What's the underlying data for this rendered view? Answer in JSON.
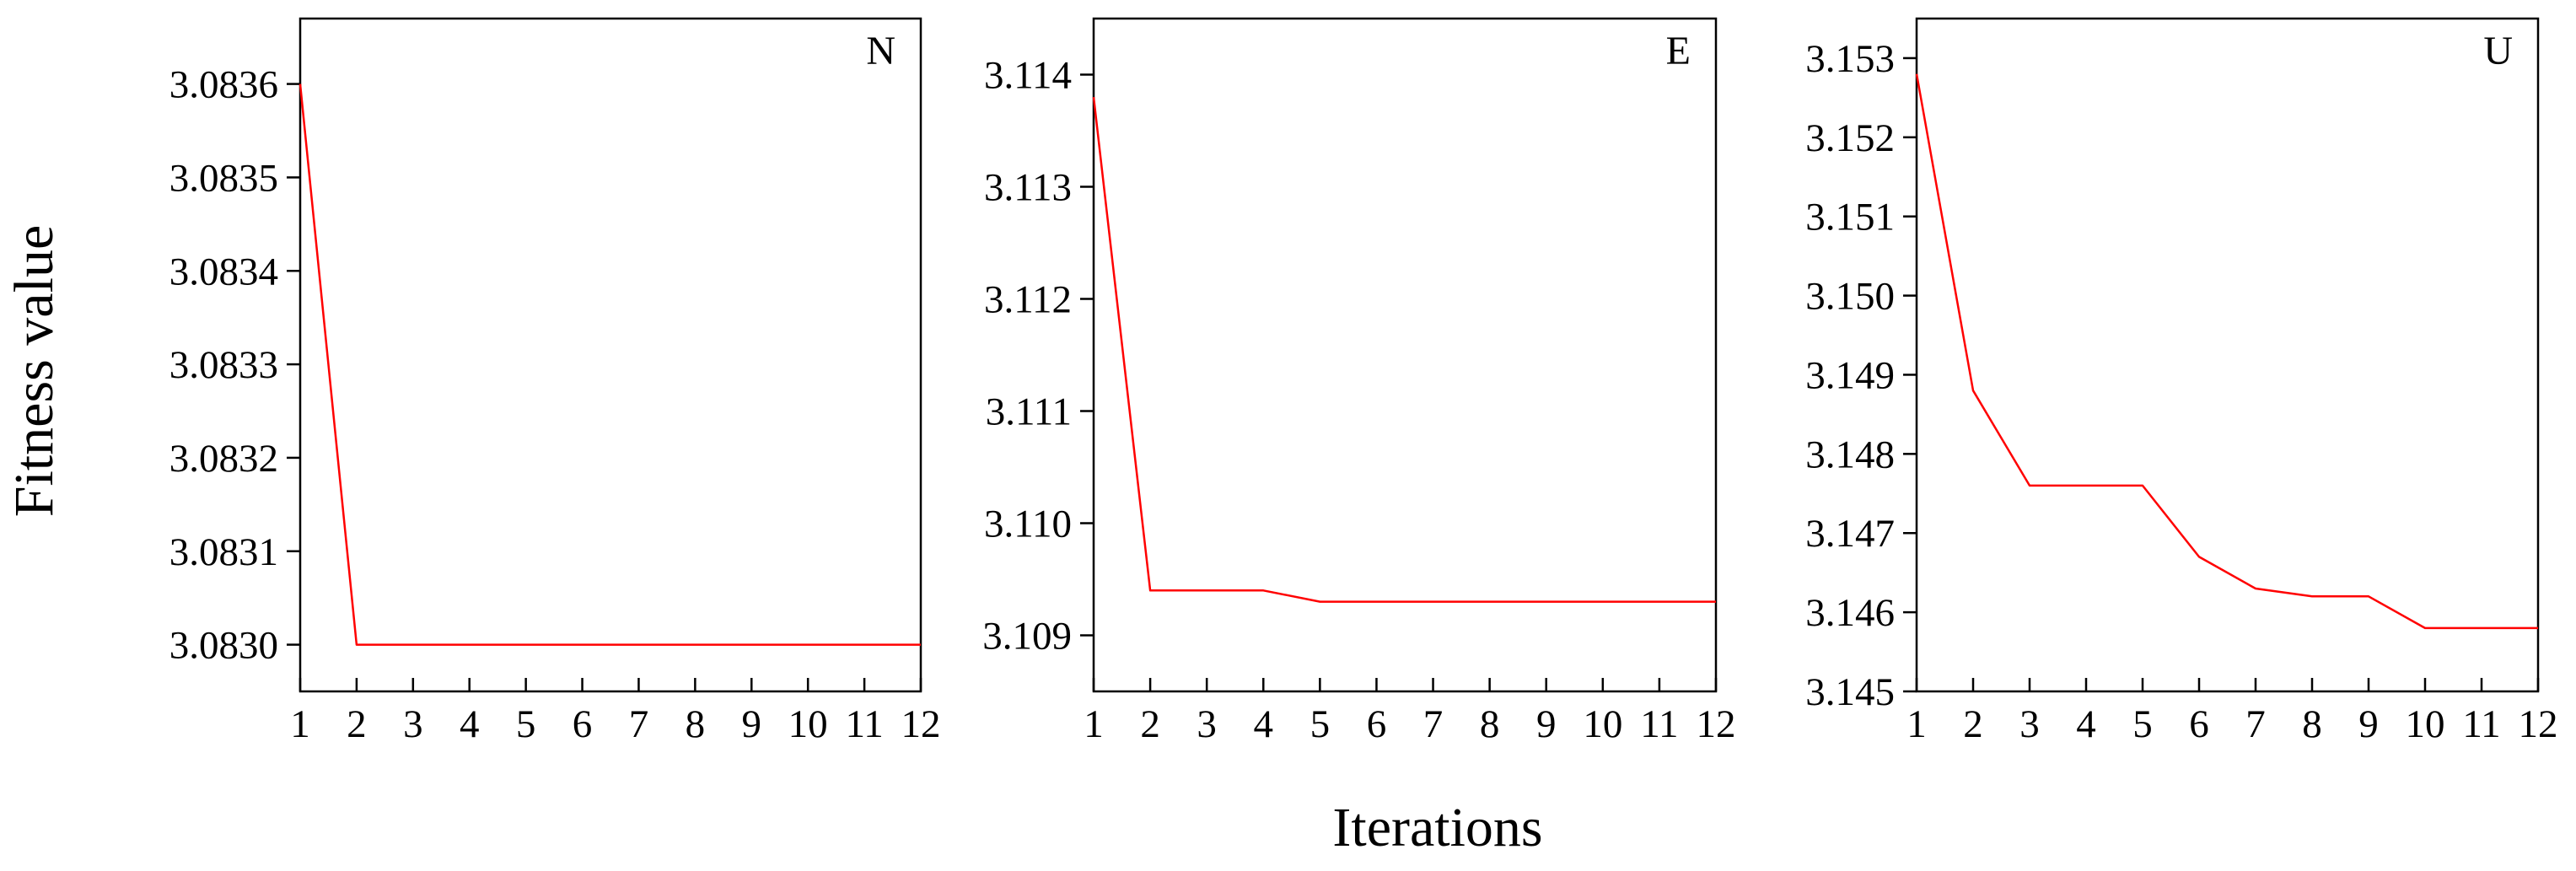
{
  "figure": {
    "ylabel": "Fitness value",
    "xlabel": "Iterations"
  },
  "colors": {
    "line": "#ff0000",
    "axis": "#000000",
    "background": "#ffffff"
  },
  "chart_data": [
    {
      "type": "line",
      "panel_label": "N",
      "x": [
        1,
        2,
        3,
        4,
        5,
        6,
        7,
        8,
        9,
        10,
        11,
        12
      ],
      "series": [
        {
          "values": [
            3.0836,
            3.083,
            3.083,
            3.083,
            3.083,
            3.083,
            3.083,
            3.083,
            3.083,
            3.083,
            3.083,
            3.083
          ]
        }
      ],
      "xlim": [
        1,
        12
      ],
      "ylim": [
        3.08295,
        3.08367
      ],
      "x_ticks": [
        "1",
        "2",
        "3",
        "4",
        "5",
        "6",
        "7",
        "8",
        "9",
        "10",
        "11",
        "12"
      ],
      "y_ticks": [
        3.083,
        3.0831,
        3.0832,
        3.0833,
        3.0834,
        3.0835,
        3.0836
      ],
      "y_tick_labels": [
        "3.0830",
        "3.0831",
        "3.0832",
        "3.0833",
        "3.0834",
        "3.0835",
        "3.0836"
      ],
      "grid": false,
      "legend": "none"
    },
    {
      "type": "line",
      "panel_label": "E",
      "x": [
        1,
        2,
        3,
        4,
        5,
        6,
        7,
        8,
        9,
        10,
        11,
        12
      ],
      "series": [
        {
          "values": [
            3.1138,
            3.1094,
            3.1094,
            3.1094,
            3.1093,
            3.1093,
            3.1093,
            3.1093,
            3.1093,
            3.1093,
            3.1093,
            3.1093
          ]
        }
      ],
      "xlim": [
        1,
        12
      ],
      "ylim": [
        3.1085,
        3.1145
      ],
      "x_ticks": [
        "1",
        "2",
        "3",
        "4",
        "5",
        "6",
        "7",
        "8",
        "9",
        "10",
        "11",
        "12"
      ],
      "y_ticks": [
        3.109,
        3.11,
        3.111,
        3.112,
        3.113,
        3.114
      ],
      "y_tick_labels": [
        "3.109",
        "3.110",
        "3.111",
        "3.112",
        "3.113",
        "3.114"
      ],
      "grid": false,
      "legend": "none"
    },
    {
      "type": "line",
      "panel_label": "U",
      "x": [
        1,
        2,
        3,
        4,
        5,
        6,
        7,
        8,
        9,
        10,
        11,
        12
      ],
      "series": [
        {
          "values": [
            3.1528,
            3.1488,
            3.1476,
            3.1476,
            3.1476,
            3.1467,
            3.1463,
            3.1462,
            3.1462,
            3.1458,
            3.1458,
            3.1458
          ]
        }
      ],
      "xlim": [
        1,
        12
      ],
      "ylim": [
        3.145,
        3.1535
      ],
      "x_ticks": [
        "1",
        "2",
        "3",
        "4",
        "5",
        "6",
        "7",
        "8",
        "9",
        "10",
        "11",
        "12"
      ],
      "y_ticks": [
        3.145,
        3.146,
        3.147,
        3.148,
        3.149,
        3.15,
        3.151,
        3.152,
        3.153
      ],
      "y_tick_labels": [
        "3.145",
        "3.146",
        "3.147",
        "3.148",
        "3.149",
        "3.150",
        "3.151",
        "3.152",
        "3.153"
      ],
      "grid": false,
      "legend": "none"
    }
  ]
}
